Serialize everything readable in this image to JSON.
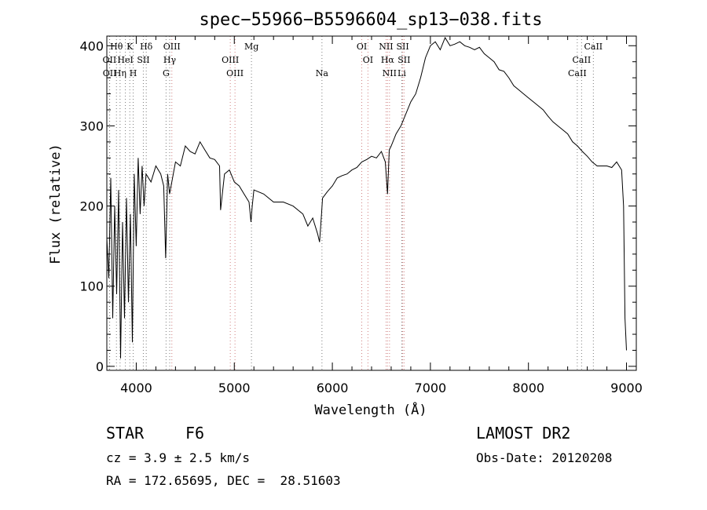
{
  "chart_data": {
    "type": "line",
    "title": "spec−55966−B5596604_sp13−038.fits",
    "xlabel": "Wavelength (Å)",
    "ylabel": "Flux (relative)",
    "xlim": [
      3700,
      9100
    ],
    "ylim": [
      -5,
      412
    ],
    "x_ticks": [
      4000,
      5000,
      6000,
      7000,
      8000,
      9000
    ],
    "y_ticks": [
      0,
      100,
      200,
      300,
      400
    ],
    "series": [
      {
        "x": [
          3700,
          3720,
          3740,
          3760,
          3780,
          3800,
          3820,
          3840,
          3860,
          3880,
          3900,
          3920,
          3940,
          3960,
          3980,
          4000,
          4020,
          4040,
          4060,
          4080,
          4100,
          4150,
          4200,
          4250,
          4280,
          4300,
          4320,
          4340,
          4400,
          4450,
          4500,
          4550,
          4600,
          4650,
          4700,
          4750,
          4800,
          4850,
          4860,
          4900,
          4950,
          5000,
          5050,
          5100,
          5150,
          5170,
          5183,
          5200,
          5300,
          5400,
          5500,
          5600,
          5700,
          5750,
          5800,
          5850,
          5870,
          5890,
          5900,
          5950,
          6000,
          6050,
          6100,
          6150,
          6200,
          6250,
          6300,
          6350,
          6400,
          6450,
          6500,
          6540,
          6563,
          6580,
          6600,
          6650,
          6700,
          6750,
          6800,
          6850,
          6900,
          6950,
          7000,
          7050,
          7100,
          7150,
          7200,
          7250,
          7300,
          7350,
          7400,
          7450,
          7500,
          7550,
          7600,
          7650,
          7700,
          7750,
          7800,
          7850,
          7900,
          7950,
          8000,
          8050,
          8100,
          8150,
          8200,
          8250,
          8300,
          8350,
          8400,
          8450,
          8500,
          8550,
          8600,
          8650,
          8700,
          8750,
          8800,
          8850,
          8900,
          8950,
          8970,
          8985,
          9000
        ],
        "y": [
          160,
          110,
          235,
          60,
          200,
          90,
          220,
          10,
          180,
          60,
          210,
          80,
          190,
          30,
          240,
          150,
          260,
          190,
          250,
          200,
          240,
          230,
          250,
          240,
          225,
          135,
          240,
          215,
          255,
          250,
          275,
          268,
          265,
          280,
          270,
          260,
          258,
          250,
          195,
          240,
          245,
          230,
          225,
          215,
          205,
          180,
          200,
          220,
          215,
          205,
          205,
          200,
          190,
          175,
          185,
          165,
          155,
          190,
          210,
          218,
          225,
          235,
          238,
          240,
          245,
          248,
          255,
          258,
          262,
          260,
          268,
          255,
          215,
          270,
          275,
          290,
          300,
          315,
          330,
          340,
          360,
          385,
          400,
          405,
          395,
          410,
          400,
          402,
          405,
          400,
          398,
          395,
          398,
          390,
          385,
          380,
          370,
          368,
          360,
          350,
          345,
          340,
          335,
          330,
          325,
          320,
          312,
          305,
          300,
          295,
          290,
          280,
          275,
          268,
          262,
          255,
          250,
          250,
          250,
          248,
          255,
          245,
          200,
          60,
          20
        ]
      }
    ],
    "lines": [
      {
        "name": "Hθ",
        "x": 3798,
        "row": 0,
        "color": "#7a7a7a"
      },
      {
        "name": "K",
        "x": 3934,
        "row": 0,
        "color": "#7a7a7a"
      },
      {
        "name": "Hδ",
        "x": 4102,
        "row": 0,
        "color": "#7a7a7a"
      },
      {
        "name": "OII",
        "x": 3727,
        "row": 1,
        "color": "#7a7a7a"
      },
      {
        "name": "HeI",
        "x": 3889,
        "row": 1,
        "color": "#7a7a7a"
      },
      {
        "name": "SII",
        "x": 4072,
        "row": 1,
        "color": "#7a7a7a"
      },
      {
        "name": "OIII",
        "x": 4363,
        "row": 0,
        "color": "#d08080"
      },
      {
        "name": "Hγ",
        "x": 4341,
        "row": 1,
        "color": "#7a7a7a"
      },
      {
        "name": "G",
        "x": 4304,
        "row": 2,
        "color": "#7a7a7a"
      },
      {
        "name": "OII",
        "x": 3729,
        "row": 2,
        "color": "#7a7a7a"
      },
      {
        "name": "Hη",
        "x": 3835,
        "row": 2,
        "color": "#7a7a7a"
      },
      {
        "name": "H",
        "x": 3969,
        "row": 2,
        "color": "#7a7a7a"
      },
      {
        "name": "OIII",
        "x": 4959,
        "row": 1,
        "color": "#d08080"
      },
      {
        "name": "OIII",
        "x": 5007,
        "row": 2,
        "color": "#d08080"
      },
      {
        "name": "Mg",
        "x": 5175,
        "row": 0,
        "color": "#7a7a7a"
      },
      {
        "name": "Na",
        "x": 5894,
        "row": 2,
        "color": "#7a7a7a"
      },
      {
        "name": "OI",
        "x": 6300,
        "row": 0,
        "color": "#d08080"
      },
      {
        "name": "OI",
        "x": 6363,
        "row": 1,
        "color": "#d08080"
      },
      {
        "name": "NII",
        "x": 6548,
        "row": 0,
        "color": "#d08080"
      },
      {
        "name": "SII",
        "x": 6717,
        "row": 0,
        "color": "#d08080"
      },
      {
        "name": "Hα",
        "x": 6563,
        "row": 1,
        "color": "#d08080"
      },
      {
        "name": "SII",
        "x": 6731,
        "row": 1,
        "color": "#d08080"
      },
      {
        "name": "NII",
        "x": 6583,
        "row": 2,
        "color": "#d08080"
      },
      {
        "name": "Li",
        "x": 6708,
        "row": 2,
        "color": "#7a7a7a"
      },
      {
        "name": "CaII",
        "x": 8662,
        "row": 0,
        "color": "#7a7a7a"
      },
      {
        "name": "CaII",
        "x": 8542,
        "row": 1,
        "color": "#7a7a7a"
      },
      {
        "name": "CaII",
        "x": 8498,
        "row": 2,
        "color": "#7a7a7a"
      }
    ]
  },
  "info": {
    "obj_class": "STAR",
    "obj_subclass": "F6",
    "cz": "cz = 3.9 ± 2.5 km/s",
    "radec": "RA = 172.65695, DEC =  28.51603",
    "survey": "LAMOST DR2",
    "obs_date": "Obs-Date: 20120208"
  }
}
